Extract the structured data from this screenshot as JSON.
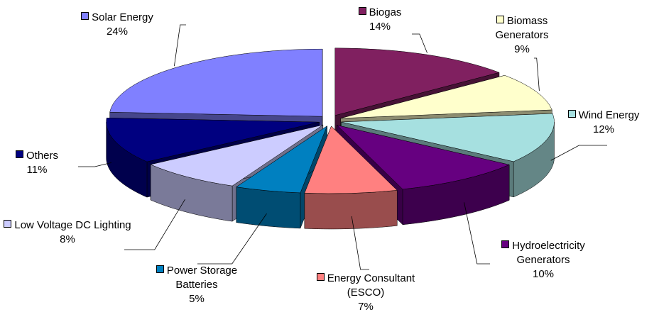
{
  "chart_data": {
    "type": "pie3d",
    "categories": [
      "Biogas",
      "Biomass Generators",
      "Wind Energy",
      "Hydroelectricity Generators",
      "Energy Consultant (ESCO)",
      "Power Storage Batteries",
      "Low Voltage DC Lighting",
      "Others",
      "Solar Energy"
    ],
    "values": [
      14,
      9,
      12,
      10,
      7,
      5,
      8,
      11,
      24
    ],
    "value_labels": [
      "14%",
      "9%",
      "12%",
      "10%",
      "7%",
      "5%",
      "8%",
      "11%",
      "24%"
    ],
    "colors": [
      "#802060",
      "#ffffcc",
      "#a6e0e0",
      "#660080",
      "#ff8080",
      "#0080c0",
      "#ccccff",
      "#000080",
      "#8080ff"
    ]
  }
}
